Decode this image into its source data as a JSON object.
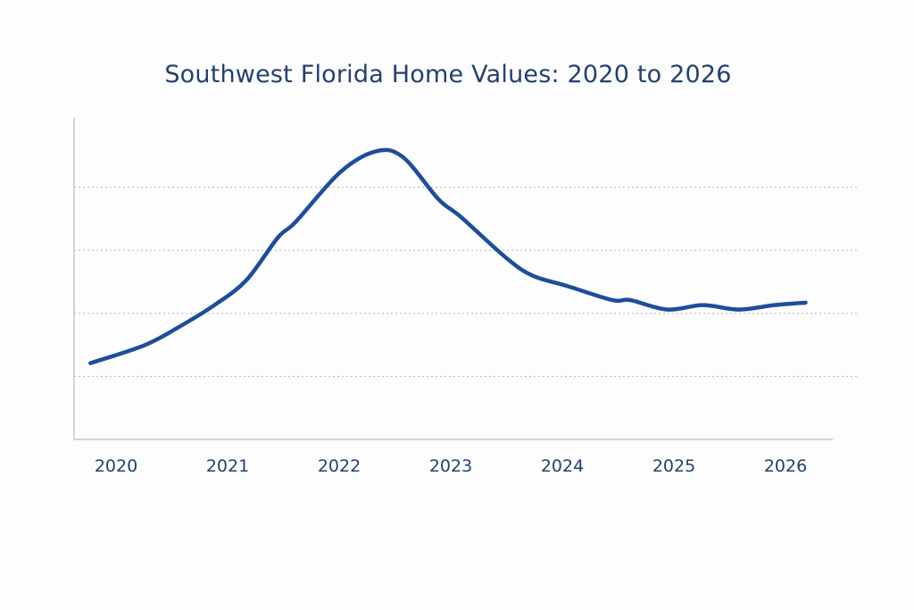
{
  "chart_data": {
    "type": "line",
    "title": "Southwest Florida Home Values: 2020 to 2026",
    "xlabel": "",
    "ylabel": "",
    "x_ticks": [
      "2020",
      "2021",
      "2022",
      "2023",
      "2024",
      "2025",
      "2026"
    ],
    "y_ticks": [],
    "y_unit": "relative index (no y-axis labels shown; 1 unit = 1 gridline interval)",
    "xlim": [
      2019.77,
      2026.22
    ],
    "ylim": [
      0,
      5.1
    ],
    "grid": "horizontal dotted",
    "gridlines_at": [
      1,
      2,
      3,
      4
    ],
    "legend": "none",
    "series": [
      {
        "name": "Home Values",
        "color": "#1d4e9a",
        "x": [
          2019.77,
          2020.25,
          2020.57,
          2020.89,
          2021.17,
          2021.45,
          2021.61,
          2022.01,
          2022.33,
          2022.57,
          2022.89,
          2023.09,
          2023.49,
          2023.73,
          2024.05,
          2024.45,
          2024.61,
          2024.94,
          2025.26,
          2025.58,
          2025.9,
          2026.18
        ],
        "y": [
          1.21,
          1.49,
          1.79,
          2.14,
          2.53,
          3.2,
          3.45,
          4.24,
          4.57,
          4.48,
          3.81,
          3.53,
          2.89,
          2.6,
          2.43,
          2.21,
          2.21,
          2.06,
          2.13,
          2.06,
          2.13,
          2.17
        ]
      }
    ]
  }
}
